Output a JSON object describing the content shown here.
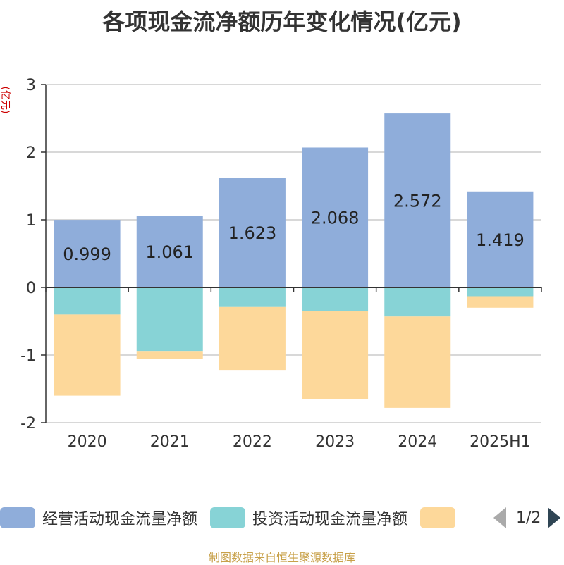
{
  "chart_data": {
    "type": "bar",
    "stacked": true,
    "title": "各项现金流净额历年变化情况(亿元)",
    "ylabel": "(亿元)",
    "ylim": [
      -2,
      3
    ],
    "yticks": [
      -2,
      -1,
      0,
      1,
      2,
      3
    ],
    "grid": true,
    "categories": [
      "2020",
      "2021",
      "2022",
      "2023",
      "2024",
      "2025H1"
    ],
    "series": [
      {
        "name": "经营活动现金流量净额",
        "color": "#8fadda",
        "values": [
          0.999,
          1.061,
          1.623,
          2.068,
          2.572,
          1.419
        ],
        "show_labels": true
      },
      {
        "name": "投资活动现金流量净额",
        "color": "#87d3d6",
        "values": [
          -0.4,
          -0.94,
          -0.29,
          -0.35,
          -0.43,
          -0.13
        ],
        "show_labels": false
      },
      {
        "name": "",
        "color": "#fdd89a",
        "values": [
          -1.2,
          -0.12,
          -0.93,
          -1.3,
          -1.35,
          -0.17
        ],
        "show_labels": false
      }
    ],
    "legend_position": "bottom",
    "legend_page": "1/2"
  },
  "source_note": "制图数据来自恒生聚源数据库"
}
